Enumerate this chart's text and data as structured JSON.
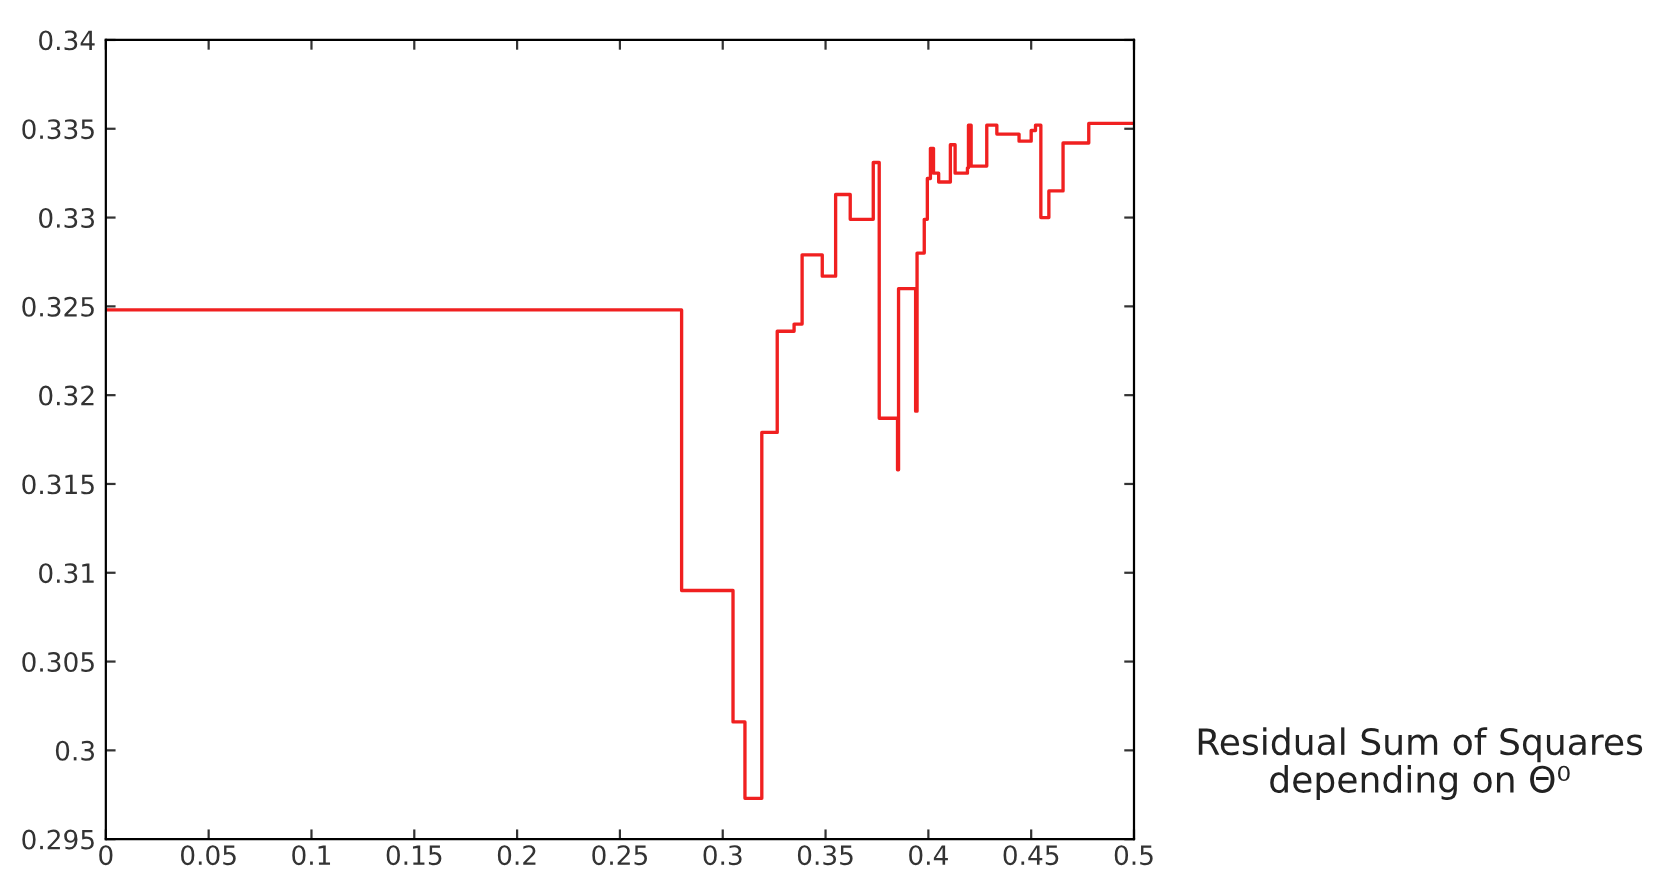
{
  "chart_data": {
    "type": "step",
    "x": [
      0,
      0.28,
      0.305,
      0.3108,
      0.319,
      0.3265,
      0.3347,
      0.3386,
      0.3484,
      0.3549,
      0.362,
      0.3732,
      0.3761,
      0.385,
      0.3855,
      0.3938,
      0.3945,
      0.398,
      0.3995,
      0.401,
      0.4025,
      0.405,
      0.4107,
      0.413,
      0.419,
      0.4195,
      0.4208,
      0.4284,
      0.4333,
      0.4441,
      0.45,
      0.4521,
      0.4547,
      0.4586,
      0.4655,
      0.478,
      0.5
    ],
    "series": [
      {
        "color": "#f02020",
        "values": [
          0.3248,
          0.309,
          0.3016,
          0.2973,
          0.3179,
          0.3236,
          0.324,
          0.3279,
          0.3267,
          0.3313,
          0.3299,
          0.3331,
          0.3187,
          0.3158,
          0.326,
          0.3191,
          0.328,
          0.3299,
          0.3322,
          0.3339,
          0.3325,
          0.332,
          0.3341,
          0.3325,
          0.3328,
          0.3352,
          0.3329,
          0.3352,
          0.3347,
          0.3343,
          0.3349,
          0.3352,
          0.33,
          0.3315,
          0.3342,
          0.3353,
          0.3353
        ]
      }
    ],
    "xlim": [
      0,
      0.5
    ],
    "xticks": [
      0,
      0.05,
      0.1,
      0.15,
      0.2,
      0.25,
      0.3,
      0.35,
      0.4,
      0.45,
      0.5
    ],
    "ylim": [
      0.295,
      0.34
    ],
    "yticks": [
      0.295,
      0.3,
      0.305,
      0.31,
      0.315,
      0.32,
      0.325,
      0.33,
      0.335,
      0.34
    ],
    "grid": false,
    "annotations": [
      "Residual Sum of Squares\ndepending on Θ⁰"
    ]
  }
}
